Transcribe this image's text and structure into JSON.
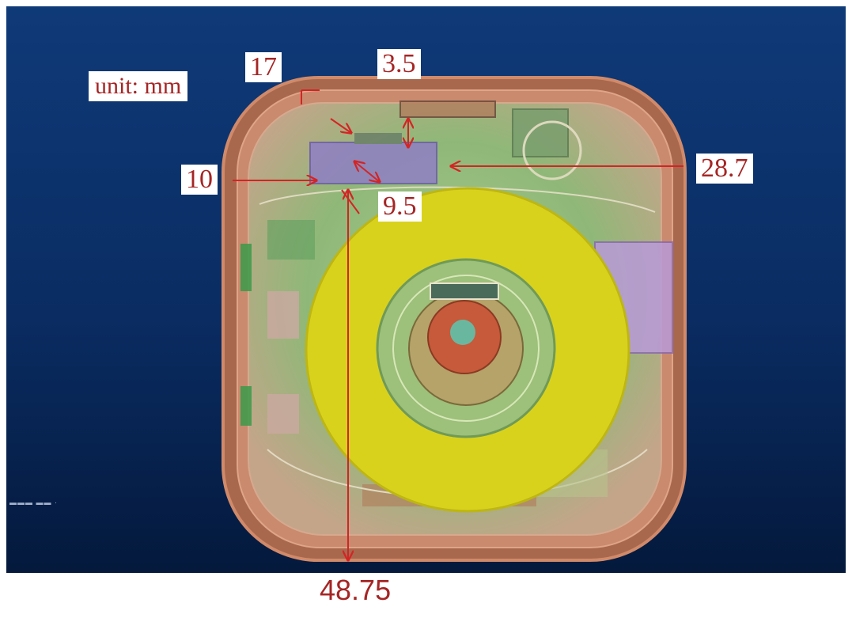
{
  "unit_label": "unit: mm",
  "dimensions": {
    "d17": "17",
    "d3_5": "3.5",
    "d10": "10",
    "d9_5": "9.5",
    "d28_7": "28.7",
    "d48_75": "48.75"
  },
  "colors": {
    "background_top": "#0f3a78",
    "background_bottom": "#041a3e",
    "annotation": "#d42424",
    "label_text": "#a52525",
    "housing": "#c07a5c",
    "coil": "#d7d21a"
  }
}
